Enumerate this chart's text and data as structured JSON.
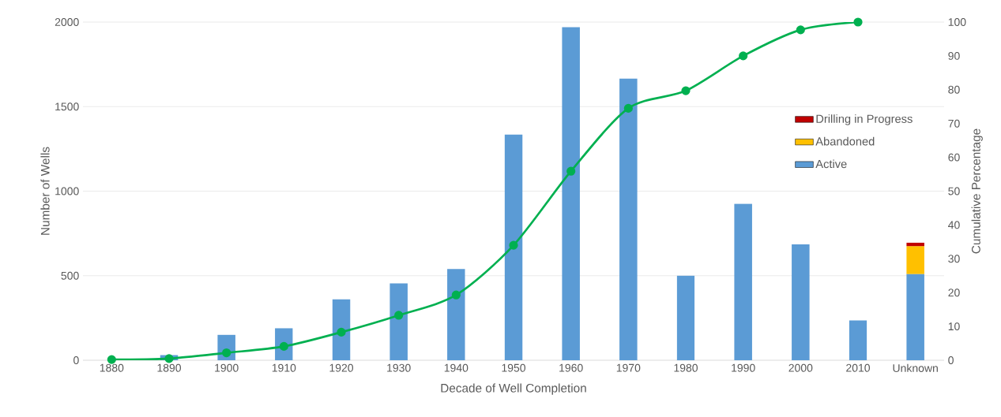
{
  "chart_data": {
    "type": "bar",
    "xlabel": "Decade of Well Completion",
    "ylabel": "Number of Wells",
    "y2label": "Cumulative Percentage",
    "categories": [
      "1880",
      "1890",
      "1900",
      "1910",
      "1920",
      "1930",
      "1940",
      "1950",
      "1960",
      "1970",
      "1980",
      "1990",
      "2000",
      "2010",
      "Unknown"
    ],
    "stacked": true,
    "series": [
      {
        "name": "Active",
        "color": "#5b9bd5",
        "values": [
          null,
          30,
          150,
          190,
          360,
          455,
          540,
          1335,
          1970,
          1665,
          500,
          925,
          685,
          235,
          510
        ]
      },
      {
        "name": "Abandoned",
        "color": "#ffc000",
        "values": [
          null,
          null,
          null,
          null,
          null,
          null,
          null,
          null,
          null,
          null,
          null,
          null,
          null,
          null,
          165
        ]
      },
      {
        "name": "Drilling in Progress",
        "color": "#c00000",
        "values": [
          null,
          null,
          null,
          null,
          null,
          null,
          null,
          null,
          null,
          null,
          null,
          null,
          null,
          null,
          20
        ]
      },
      {
        "type": "line",
        "axis": "y2",
        "color": "#00b050",
        "values": [
          0.2,
          0.5,
          2.2,
          4.1,
          8.3,
          13.3,
          19.3,
          34.0,
          55.9,
          74.5,
          79.7,
          90.0,
          97.7,
          100,
          null
        ]
      }
    ],
    "ylim": [
      0,
      2000
    ],
    "yticks": [
      0,
      500,
      1000,
      1500,
      2000
    ],
    "y2lim": [
      0,
      100
    ],
    "y2ticks": [
      0,
      10,
      20,
      30,
      40,
      50,
      60,
      70,
      80,
      90,
      100
    ],
    "grid": "y",
    "legend": "right",
    "marker": "circle"
  }
}
